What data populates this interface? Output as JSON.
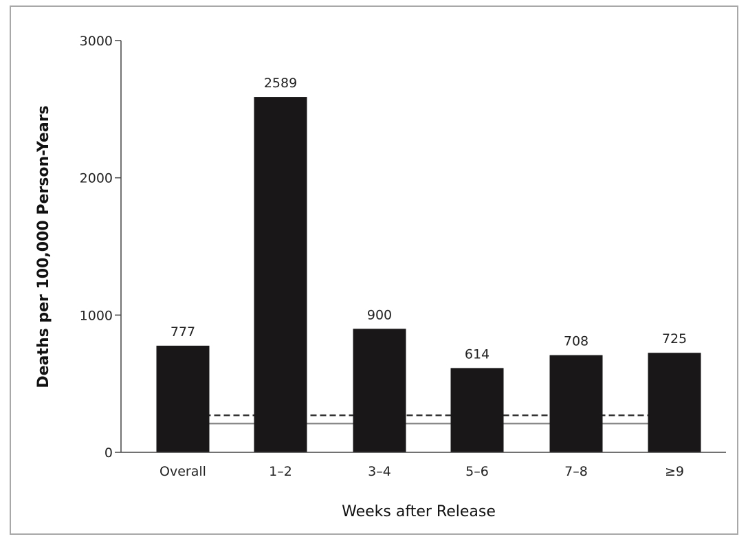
{
  "chart_data": {
    "type": "bar",
    "categories": [
      "Overall",
      "1–2",
      "3–4",
      "5–6",
      "7–8",
      "≥9"
    ],
    "values": [
      777,
      2589,
      900,
      614,
      708,
      725
    ],
    "value_labels": [
      "777",
      "2589",
      "900",
      "614",
      "708",
      "725"
    ],
    "xlabel": "Weeks after Release",
    "ylabel": "Deaths per 100,000 Person-Years",
    "ylim": [
      0,
      3000
    ],
    "yticks": [
      0,
      1000,
      2000,
      3000
    ],
    "ytick_labels": [
      "0",
      "1000",
      "2000",
      "3000"
    ],
    "reference_lines": [
      {
        "style": "dashed",
        "value": 270
      },
      {
        "style": "solid",
        "value": 210
      }
    ],
    "grid": false,
    "colors": {
      "bar": "#1a1718",
      "axis": "#444444",
      "reference_dashed": "#333333",
      "reference_solid": "#8a8a8a",
      "frame": "#a8a8a8"
    }
  }
}
